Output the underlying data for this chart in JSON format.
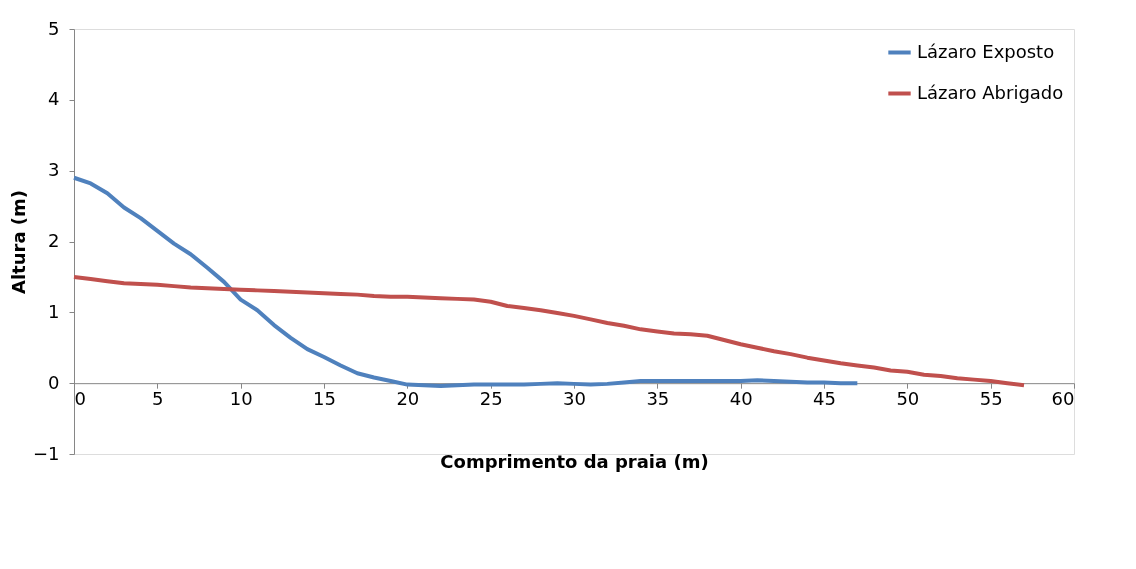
{
  "chart_data": {
    "type": "line",
    "xlabel": "Comprimento da praia (m)",
    "ylabel": "Altura (m)",
    "xlim": [
      0,
      60
    ],
    "xticks": [
      0,
      5,
      10,
      15,
      20,
      25,
      30,
      35,
      40,
      45,
      50,
      55,
      60
    ],
    "ylim": [
      -1,
      5
    ],
    "yticks": [
      -1,
      0,
      1,
      2,
      3,
      4,
      5
    ],
    "grid": false,
    "legend": "top right",
    "marker": "none",
    "line_style": "solid",
    "series": [
      {
        "name": "Lázaro Exposto",
        "color": "#4f81bd",
        "x": [
          0,
          1,
          2,
          3,
          4,
          5,
          6,
          7,
          8,
          9,
          10,
          11,
          12,
          13,
          14,
          15,
          16,
          17,
          18,
          19,
          20,
          21,
          22,
          23,
          24,
          25,
          26,
          27,
          28,
          29,
          30,
          31,
          32,
          33,
          34,
          35,
          36,
          37,
          38,
          39,
          40,
          41,
          42,
          43,
          44,
          45,
          46,
          47
        ],
        "values": [
          2.9,
          2.82,
          2.68,
          2.48,
          2.33,
          2.15,
          1.97,
          1.82,
          1.63,
          1.43,
          1.18,
          1.03,
          0.82,
          0.64,
          0.48,
          0.37,
          0.25,
          0.14,
          0.08,
          0.03,
          -0.02,
          -0.03,
          -0.04,
          -0.03,
          -0.02,
          -0.02,
          -0.02,
          -0.02,
          -0.01,
          0,
          -0.01,
          -0.02,
          -0.01,
          0.01,
          0.03,
          0.03,
          0.03,
          0.03,
          0.03,
          0.03,
          0.03,
          0.04,
          0.03,
          0.02,
          0.01,
          0.01,
          0,
          0
        ]
      },
      {
        "name": "Lázaro Abrigado",
        "color": "#c0504d",
        "x": [
          0,
          1,
          2,
          3,
          4,
          5,
          6,
          7,
          8,
          9,
          10,
          11,
          12,
          13,
          14,
          15,
          16,
          17,
          18,
          19,
          20,
          21,
          22,
          23,
          24,
          25,
          26,
          27,
          28,
          29,
          30,
          31,
          32,
          33,
          34,
          35,
          36,
          37,
          38,
          39,
          40,
          41,
          42,
          43,
          44,
          45,
          46,
          47,
          48,
          49,
          50,
          51,
          52,
          53,
          54,
          55,
          56,
          57
        ],
        "values": [
          1.5,
          1.47,
          1.44,
          1.41,
          1.4,
          1.39,
          1.37,
          1.35,
          1.34,
          1.33,
          1.32,
          1.31,
          1.3,
          1.29,
          1.28,
          1.27,
          1.26,
          1.25,
          1.23,
          1.22,
          1.22,
          1.21,
          1.2,
          1.19,
          1.18,
          1.15,
          1.09,
          1.06,
          1.03,
          0.99,
          0.95,
          0.9,
          0.85,
          0.81,
          0.76,
          0.73,
          0.7,
          0.69,
          0.67,
          0.61,
          0.55,
          0.5,
          0.45,
          0.41,
          0.36,
          0.32,
          0.28,
          0.25,
          0.22,
          0.18,
          0.16,
          0.12,
          0.1,
          0.07,
          0.05,
          0.03,
          0.0,
          -0.03
        ]
      }
    ]
  }
}
